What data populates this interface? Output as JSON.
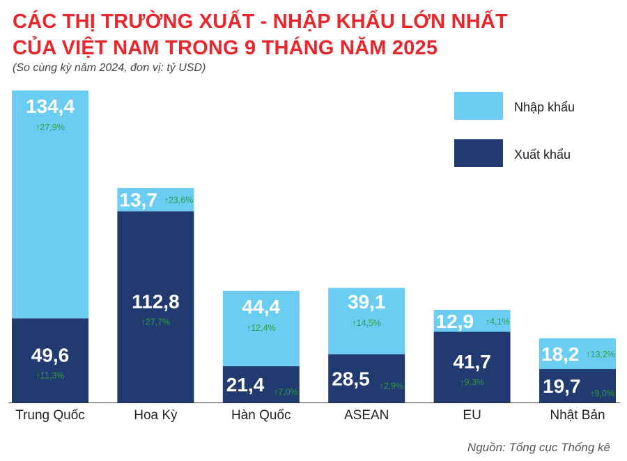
{
  "title_line1": "CÁC THỊ TRƯỜNG XUẤT - NHẬP KHẨU LỚN NHẤT",
  "title_line2": "CỦA VIỆT NAM TRONG 9 THÁNG NĂM 2025",
  "subtitle": "(So cùng kỳ năm 2024, đơn vị: tỷ USD)",
  "source": "Nguồn: Tổng cục Thống kê",
  "colors": {
    "import": "#6ccdf3",
    "export": "#213a6f",
    "growth": "#2e9e3f",
    "title": "#e8262c"
  },
  "chart_data": {
    "type": "bar",
    "stacked": true,
    "categories": [
      "Trung Quốc",
      "Hoa Kỳ",
      "Hàn Quốc",
      "ASEAN",
      "EU",
      "Nhật Bản"
    ],
    "series": [
      {
        "name": "Xuất khẩu",
        "values": [
          49.6,
          112.8,
          21.4,
          28.5,
          41.7,
          19.7
        ],
        "labels": [
          "49,6",
          "112,8",
          "21,4",
          "28,5",
          "41,7",
          "19,7"
        ],
        "growth": [
          "11,3%",
          "27,7%",
          "7,0%",
          "2,9%",
          "9,3%",
          "9,0%"
        ]
      },
      {
        "name": "Nhập khẩu",
        "values": [
          134.4,
          13.7,
          44.4,
          39.1,
          12.9,
          18.2
        ],
        "labels": [
          "134,4",
          "13,7",
          "44,4",
          "39,1",
          "12,9",
          "18,2"
        ],
        "growth": [
          "27,9%",
          "23,6%",
          "12,4%",
          "14,5%",
          "4,1%",
          "13,2%"
        ]
      }
    ],
    "growth_arrow": "↑",
    "legend_position": "top-right",
    "grid": false
  }
}
